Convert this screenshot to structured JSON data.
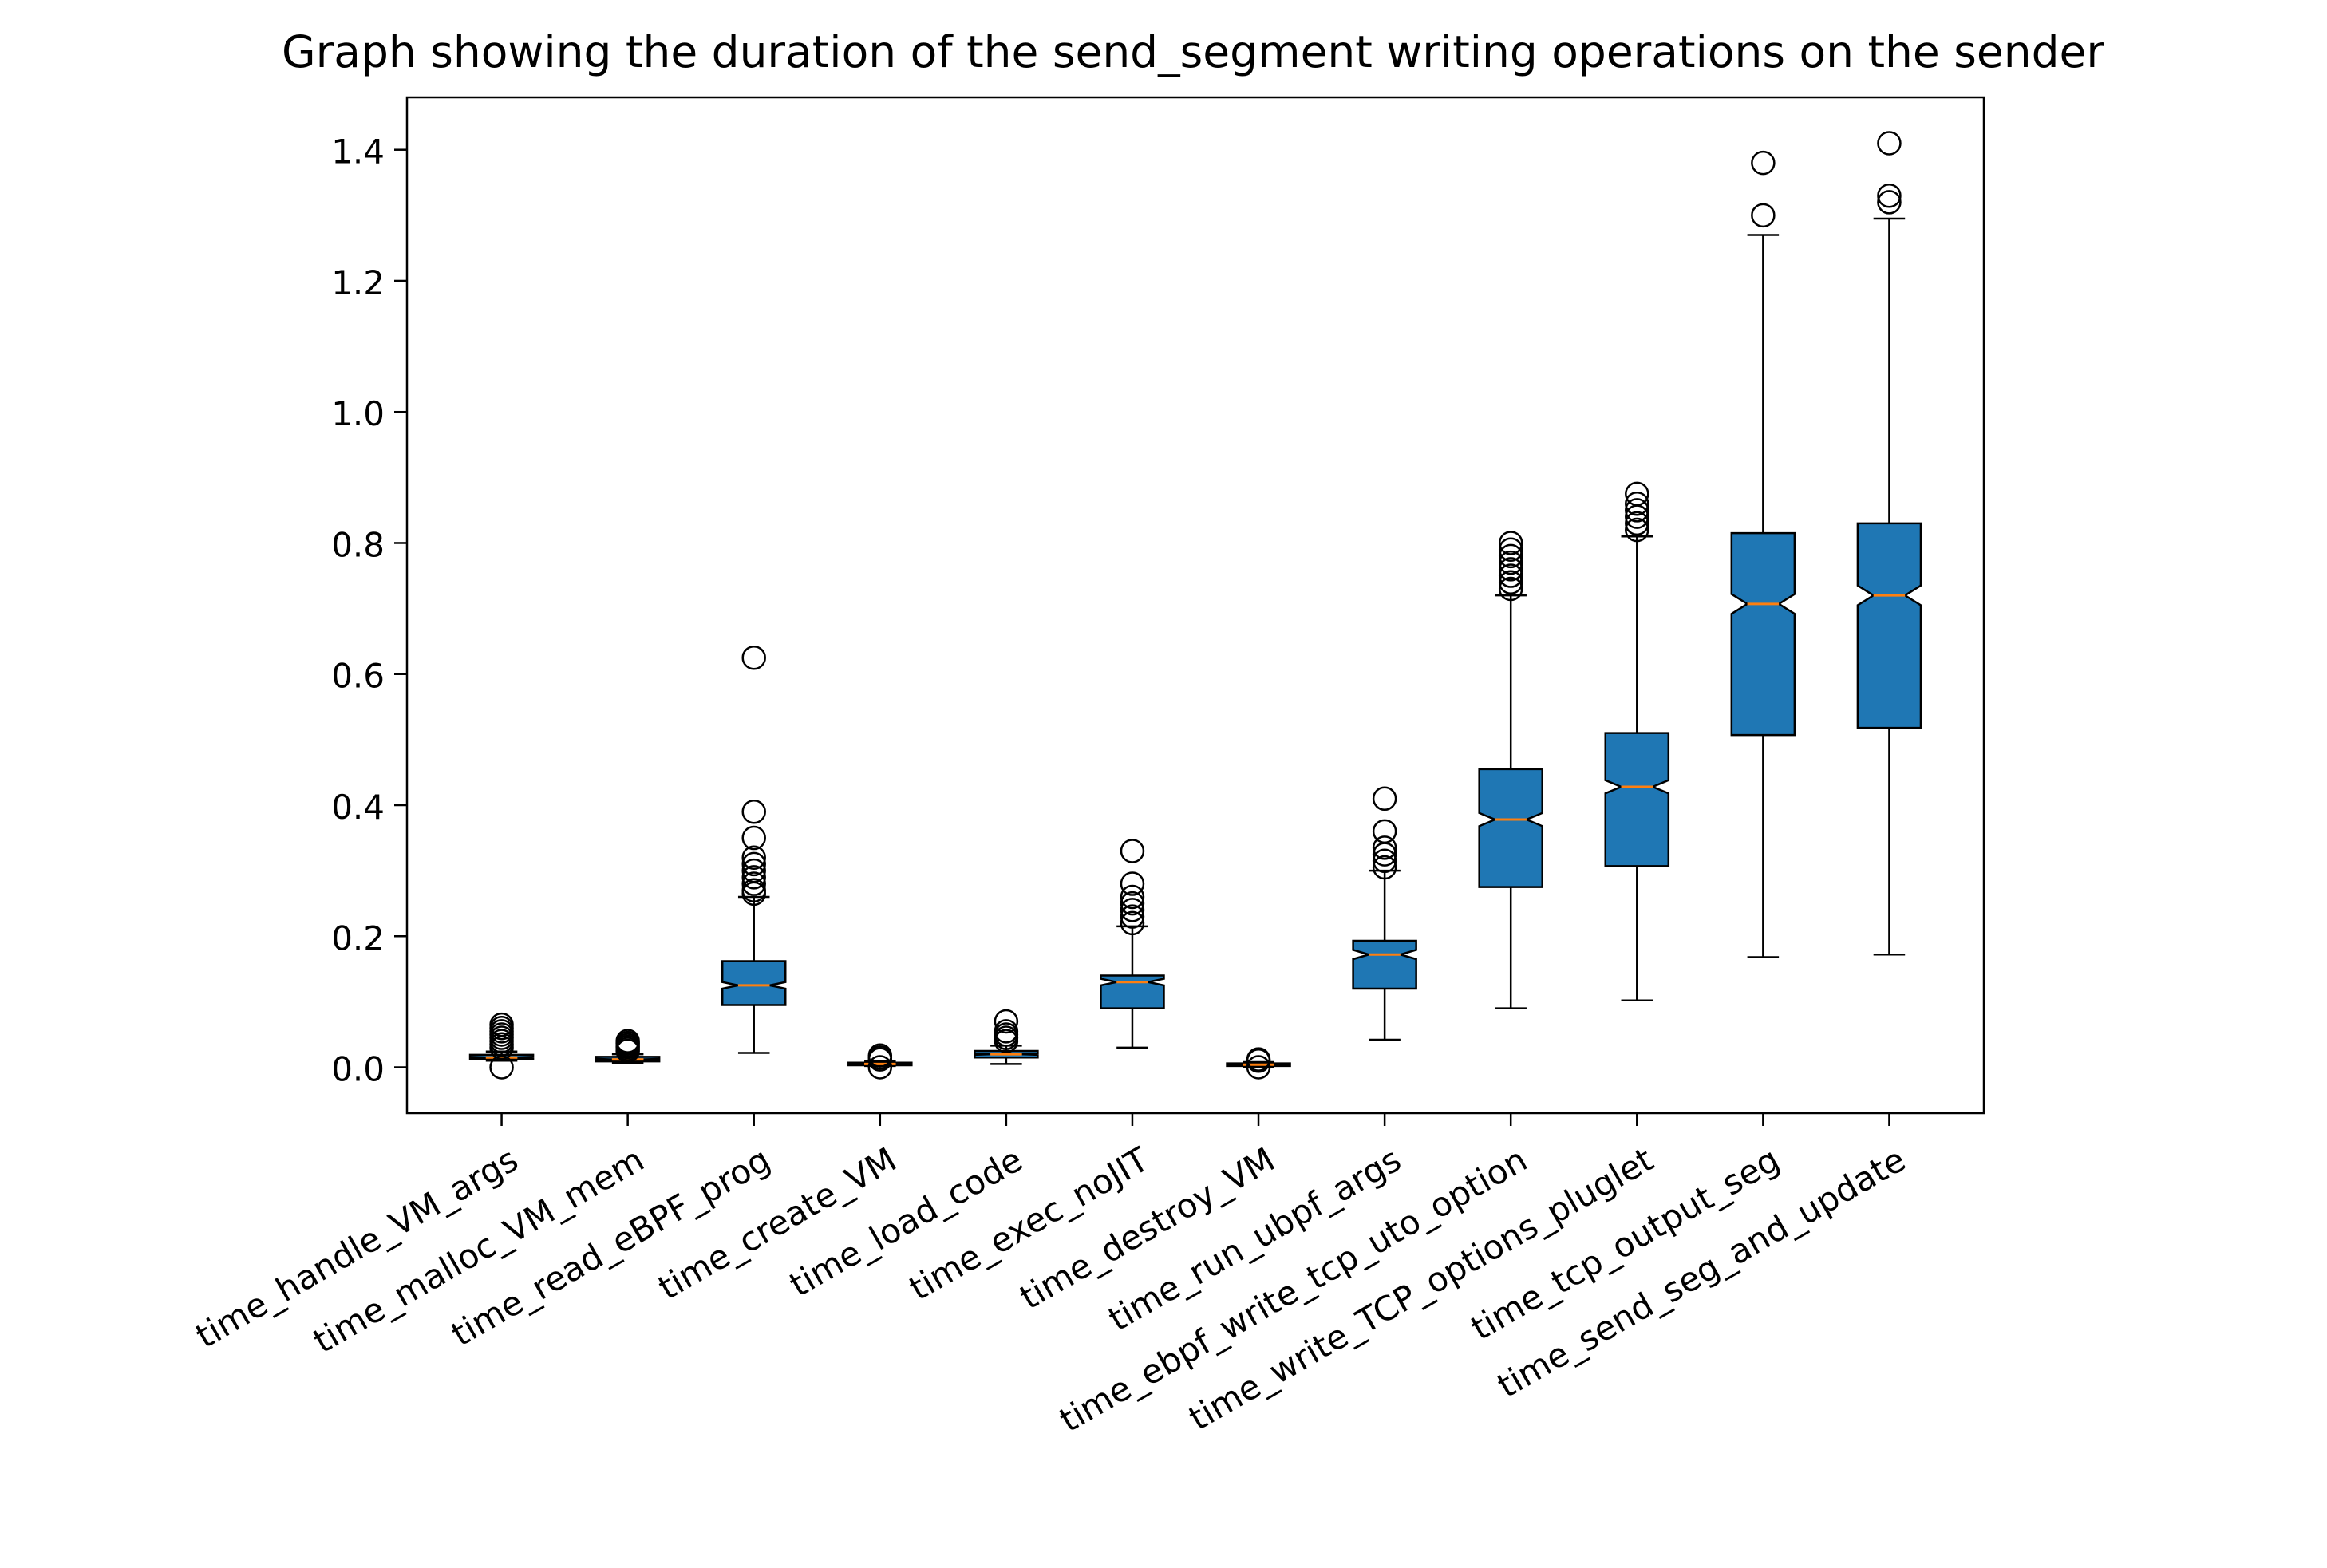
{
  "chart_data": {
    "type": "boxplot",
    "title": "Graph showing the duration of the send_segment writing operations on the sender",
    "xlabel": "",
    "ylabel": "",
    "ylim": [
      -0.07,
      1.48
    ],
    "yticks": [
      "0.0",
      "0.2",
      "0.4",
      "0.6",
      "0.8",
      "1.0",
      "1.2",
      "1.4"
    ],
    "grid": false,
    "notched": true,
    "box_color": "#1f77b4",
    "median_color": "#ff7f0e",
    "categories": [
      "time_handle_VM_args",
      "time_malloc_VM_mem",
      "time_read_eBPF_prog",
      "time_create_VM",
      "time_load_code",
      "time_exec_noJIT",
      "time_destroy_VM",
      "time_run_ubpf_args",
      "time_ebpf_write_tcp_uto_option",
      "time_write_TCP_options_pluglet",
      "time_tcp_output_seg",
      "time_send_seg_and_update"
    ],
    "boxes": [
      {
        "whisker_low": 0.01,
        "q1": 0.012,
        "median": 0.015,
        "q3": 0.019,
        "whisker_high": 0.024,
        "notch_low": 0.014,
        "notch_high": 0.016,
        "outliers": [
          0.0,
          0.03,
          0.035,
          0.04,
          0.045,
          0.05,
          0.055,
          0.06,
          0.065
        ]
      },
      {
        "whisker_low": 0.007,
        "q1": 0.009,
        "median": 0.012,
        "q3": 0.016,
        "whisker_high": 0.02,
        "notch_low": 0.011,
        "notch_high": 0.013,
        "outliers": [
          0.025,
          0.028,
          0.031,
          0.034,
          0.037,
          0.04
        ]
      },
      {
        "whisker_low": 0.022,
        "q1": 0.095,
        "median": 0.125,
        "q3": 0.162,
        "whisker_high": 0.26,
        "notch_low": 0.12,
        "notch_high": 0.13,
        "outliers": [
          0.265,
          0.27,
          0.28,
          0.29,
          0.3,
          0.31,
          0.32,
          0.35,
          0.39,
          0.625
        ]
      },
      {
        "whisker_low": 0.002,
        "q1": 0.003,
        "median": 0.005,
        "q3": 0.007,
        "whisker_high": 0.009,
        "notch_low": 0.0045,
        "notch_high": 0.0055,
        "outliers": [
          0.0,
          0.012,
          0.015,
          0.018
        ]
      },
      {
        "whisker_low": 0.005,
        "q1": 0.015,
        "median": 0.02,
        "q3": 0.025,
        "whisker_high": 0.033,
        "notch_low": 0.019,
        "notch_high": 0.021,
        "outliers": [
          0.04,
          0.045,
          0.05,
          0.055,
          0.07
        ]
      },
      {
        "whisker_low": 0.03,
        "q1": 0.09,
        "median": 0.13,
        "q3": 0.14,
        "whisker_high": 0.215,
        "notch_low": 0.125,
        "notch_high": 0.135,
        "outliers": [
          0.22,
          0.23,
          0.24,
          0.25,
          0.26,
          0.28,
          0.33
        ]
      },
      {
        "whisker_low": 0.001,
        "q1": 0.002,
        "median": 0.004,
        "q3": 0.006,
        "whisker_high": 0.008,
        "notch_low": 0.0035,
        "notch_high": 0.0045,
        "outliers": [
          0.0,
          0.01,
          0.012
        ]
      },
      {
        "whisker_low": 0.042,
        "q1": 0.12,
        "median": 0.172,
        "q3": 0.193,
        "whisker_high": 0.3,
        "notch_low": 0.165,
        "notch_high": 0.179,
        "outliers": [
          0.305,
          0.315,
          0.325,
          0.335,
          0.36,
          0.41
        ]
      },
      {
        "whisker_low": 0.09,
        "q1": 0.275,
        "median": 0.378,
        "q3": 0.455,
        "whisker_high": 0.72,
        "notch_low": 0.368,
        "notch_high": 0.388,
        "outliers": [
          0.73,
          0.74,
          0.75,
          0.76,
          0.77,
          0.78,
          0.79,
          0.8
        ]
      },
      {
        "whisker_low": 0.102,
        "q1": 0.307,
        "median": 0.428,
        "q3": 0.51,
        "whisker_high": 0.81,
        "notch_low": 0.418,
        "notch_high": 0.438,
        "outliers": [
          0.82,
          0.83,
          0.84,
          0.85,
          0.86,
          0.875
        ]
      },
      {
        "whisker_low": 0.168,
        "q1": 0.507,
        "median": 0.707,
        "q3": 0.815,
        "whisker_high": 1.27,
        "notch_low": 0.692,
        "notch_high": 0.722,
        "outliers": [
          1.3,
          1.38
        ]
      },
      {
        "whisker_low": 0.172,
        "q1": 0.518,
        "median": 0.72,
        "q3": 0.83,
        "whisker_high": 1.295,
        "notch_low": 0.705,
        "notch_high": 0.735,
        "outliers": [
          1.32,
          1.33,
          1.41
        ]
      }
    ]
  }
}
